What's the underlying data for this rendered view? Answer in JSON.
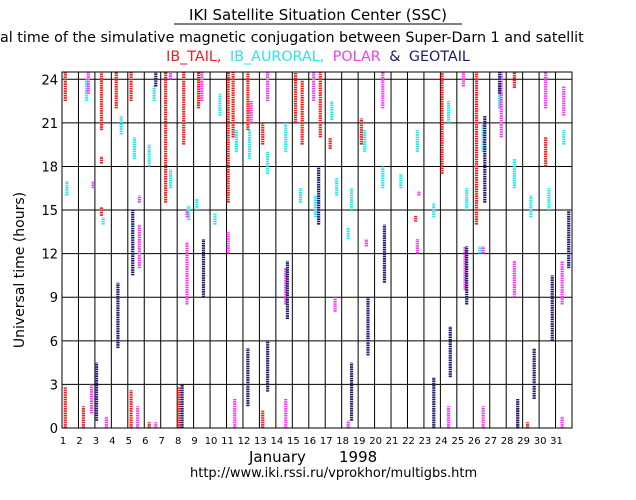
{
  "header": {
    "title": "IKI Satellite Situation Center (SSC)",
    "subtitle": "al time of the simulative magnetic conjugation between Super-Darn 1 and satellit",
    "legend": [
      {
        "label": "IB_TAIL,",
        "color": "#e8221e"
      },
      {
        "label": "IB_AURORAL,",
        "color": "#2ce3ea"
      },
      {
        "label": "POLAR",
        "color": "#f23cf2"
      },
      {
        "label": "&",
        "color": "#1a1a6e"
      },
      {
        "label": "GEOTAIL",
        "color": "#1a1a6e"
      }
    ]
  },
  "footer": {
    "month": "January",
    "year": "1998",
    "url": "http://www.iki.rssi.ru/vprokhor/multigbs.htm"
  },
  "chart_data": {
    "type": "timeline",
    "ylabel": "Universal time (hours)",
    "xlabel": "January 1998",
    "xlim": [
      1,
      32
    ],
    "ylim": [
      0,
      24.5
    ],
    "yticks": [
      0,
      3,
      6,
      9,
      12,
      15,
      18,
      21,
      24
    ],
    "xticks": [
      1,
      2,
      3,
      4,
      5,
      6,
      7,
      8,
      9,
      10,
      11,
      12,
      13,
      14,
      15,
      16,
      17,
      18,
      19,
      20,
      21,
      22,
      23,
      24,
      25,
      26,
      27,
      28,
      29,
      30,
      31
    ],
    "grid": true,
    "series": [
      {
        "name": "IB_TAIL",
        "color": "#e8221e",
        "segments": [
          [
            1.2,
            0,
            2.8
          ],
          [
            1.2,
            22.5,
            24.5
          ],
          [
            2.3,
            0,
            1.5
          ],
          [
            3.4,
            20.5,
            24.5
          ],
          [
            3.4,
            18.2,
            18.7
          ],
          [
            3.4,
            14.6,
            15.2
          ],
          [
            4.3,
            22,
            24.5
          ],
          [
            5.2,
            22.5,
            24.5
          ],
          [
            5.2,
            0,
            2.6
          ],
          [
            6.3,
            0,
            0.4
          ],
          [
            7.3,
            15.5,
            24.5
          ],
          [
            8.1,
            0,
            2.8
          ],
          [
            8.4,
            19.5,
            24.5
          ],
          [
            9.3,
            22,
            24.5
          ],
          [
            11.1,
            15.5,
            24.5
          ],
          [
            11.4,
            20,
            24.5
          ],
          [
            12.3,
            20.5,
            24.5
          ],
          [
            13.2,
            0,
            1.2
          ],
          [
            13.2,
            19.5,
            21
          ],
          [
            15.2,
            21,
            24.5
          ],
          [
            15.6,
            19.5,
            24
          ],
          [
            16.7,
            20,
            24.5
          ],
          [
            17.3,
            19.2,
            20
          ],
          [
            19.2,
            19.5,
            21.3
          ],
          [
            22.5,
            14.2,
            14.6
          ],
          [
            24.1,
            17.5,
            24.5
          ],
          [
            26.2,
            14,
            24.5
          ],
          [
            28.5,
            23.4,
            24.5
          ],
          [
            29.3,
            0,
            0.4
          ],
          [
            30.4,
            18,
            20
          ]
        ]
      },
      {
        "name": "IB_AURORAL",
        "color": "#2ce3ea",
        "segments": [
          [
            1.3,
            16,
            17
          ],
          [
            2.5,
            22.5,
            24
          ],
          [
            3.5,
            14,
            14.5
          ],
          [
            4.6,
            20.2,
            21.5
          ],
          [
            5.4,
            18.5,
            20
          ],
          [
            6.3,
            18,
            19.5
          ],
          [
            6.6,
            22.5,
            23.5
          ],
          [
            7.6,
            16.5,
            17.8
          ],
          [
            8.7,
            14.3,
            15.3
          ],
          [
            9.2,
            15,
            15.8
          ],
          [
            10.3,
            14,
            14.8
          ],
          [
            10.6,
            21.5,
            23
          ],
          [
            11.6,
            19,
            20.5
          ],
          [
            12.4,
            18.5,
            20.5
          ],
          [
            13.5,
            17.5,
            19
          ],
          [
            14.6,
            19,
            21
          ],
          [
            15.5,
            15.5,
            16.5
          ],
          [
            16.4,
            14.5,
            16
          ],
          [
            17.4,
            21.2,
            22.5
          ],
          [
            17.7,
            16,
            17.2
          ],
          [
            18.4,
            13,
            13.8
          ],
          [
            18.6,
            15,
            16.5
          ],
          [
            19.4,
            19,
            20.5
          ],
          [
            20.5,
            16.5,
            18
          ],
          [
            21.6,
            16.5,
            17.5
          ],
          [
            22.6,
            19,
            20.5
          ],
          [
            23.6,
            14.5,
            15.5
          ],
          [
            24.5,
            21,
            22.5
          ],
          [
            25.6,
            15,
            16.5
          ],
          [
            26.4,
            12,
            12.5
          ],
          [
            26.6,
            19,
            21
          ],
          [
            27.6,
            22,
            23.5
          ],
          [
            28.5,
            16.5,
            18.5
          ],
          [
            29.5,
            14.5,
            16
          ],
          [
            30.6,
            15,
            16.5
          ],
          [
            31.5,
            19.5,
            20.5
          ]
        ]
      },
      {
        "name": "POLAR",
        "color": "#f23cf2",
        "segments": [
          [
            2.6,
            23,
            24.5
          ],
          [
            2.8,
            1,
            3
          ],
          [
            2.9,
            16.5,
            17
          ],
          [
            3.7,
            0,
            0.8
          ],
          [
            5.6,
            0,
            1.5
          ],
          [
            5.7,
            11,
            14
          ],
          [
            5.7,
            15.5,
            16
          ],
          [
            6.7,
            0,
            0.4
          ],
          [
            7.6,
            24,
            24.5
          ],
          [
            8.6,
            8.5,
            12.8
          ],
          [
            8.6,
            14.5,
            15
          ],
          [
            9.5,
            22.5,
            24.5
          ],
          [
            11.1,
            12,
            13.5
          ],
          [
            11.5,
            0,
            2
          ],
          [
            12.5,
            21,
            22.5
          ],
          [
            13.5,
            22.5,
            24.5
          ],
          [
            14.6,
            8.5,
            11
          ],
          [
            14.6,
            0,
            2
          ],
          [
            16.3,
            22.5,
            24.5
          ],
          [
            17.6,
            8,
            9
          ],
          [
            18.4,
            0,
            0.5
          ],
          [
            19.5,
            12.5,
            13
          ],
          [
            20.5,
            22,
            24.5
          ],
          [
            22.6,
            12,
            13
          ],
          [
            22.7,
            16,
            16.3
          ],
          [
            24.5,
            0,
            1.5
          ],
          [
            25.4,
            23.5,
            24.5
          ],
          [
            25.5,
            9.5,
            12.5
          ],
          [
            26.6,
            12,
            12.5
          ],
          [
            26.6,
            0,
            1.5
          ],
          [
            27.7,
            20,
            24.5
          ],
          [
            28.5,
            9,
            11.5
          ],
          [
            28.7,
            0,
            1.5
          ],
          [
            30.4,
            22,
            24.5
          ],
          [
            31.4,
            8.5,
            11.5
          ],
          [
            31.4,
            0,
            0.8
          ],
          [
            31.5,
            21.5,
            23.5
          ]
        ]
      },
      {
        "name": "GEOTAIL",
        "color": "#1a1a6e",
        "segments": [
          [
            3.1,
            0.5,
            4.5
          ],
          [
            4.4,
            5.5,
            10
          ],
          [
            5.3,
            10.5,
            15
          ],
          [
            6.7,
            23.5,
            24.5
          ],
          [
            8.3,
            0,
            3
          ],
          [
            9.6,
            9,
            13
          ],
          [
            12.3,
            1.5,
            5.5
          ],
          [
            13.5,
            2.5,
            6
          ],
          [
            14.7,
            7.5,
            11.5
          ],
          [
            16.6,
            14,
            18
          ],
          [
            18.6,
            0.5,
            4.5
          ],
          [
            19.6,
            5,
            9
          ],
          [
            20.6,
            10,
            14
          ],
          [
            23.6,
            0,
            3.5
          ],
          [
            24.6,
            3.5,
            7
          ],
          [
            25.6,
            8.5,
            12.5
          ],
          [
            26.7,
            15.5,
            21.5
          ],
          [
            27.6,
            23,
            24.5
          ],
          [
            28.7,
            0,
            2
          ],
          [
            29.7,
            2,
            5.5
          ],
          [
            30.8,
            6,
            10.5
          ],
          [
            31.8,
            11,
            15
          ]
        ]
      }
    ]
  }
}
